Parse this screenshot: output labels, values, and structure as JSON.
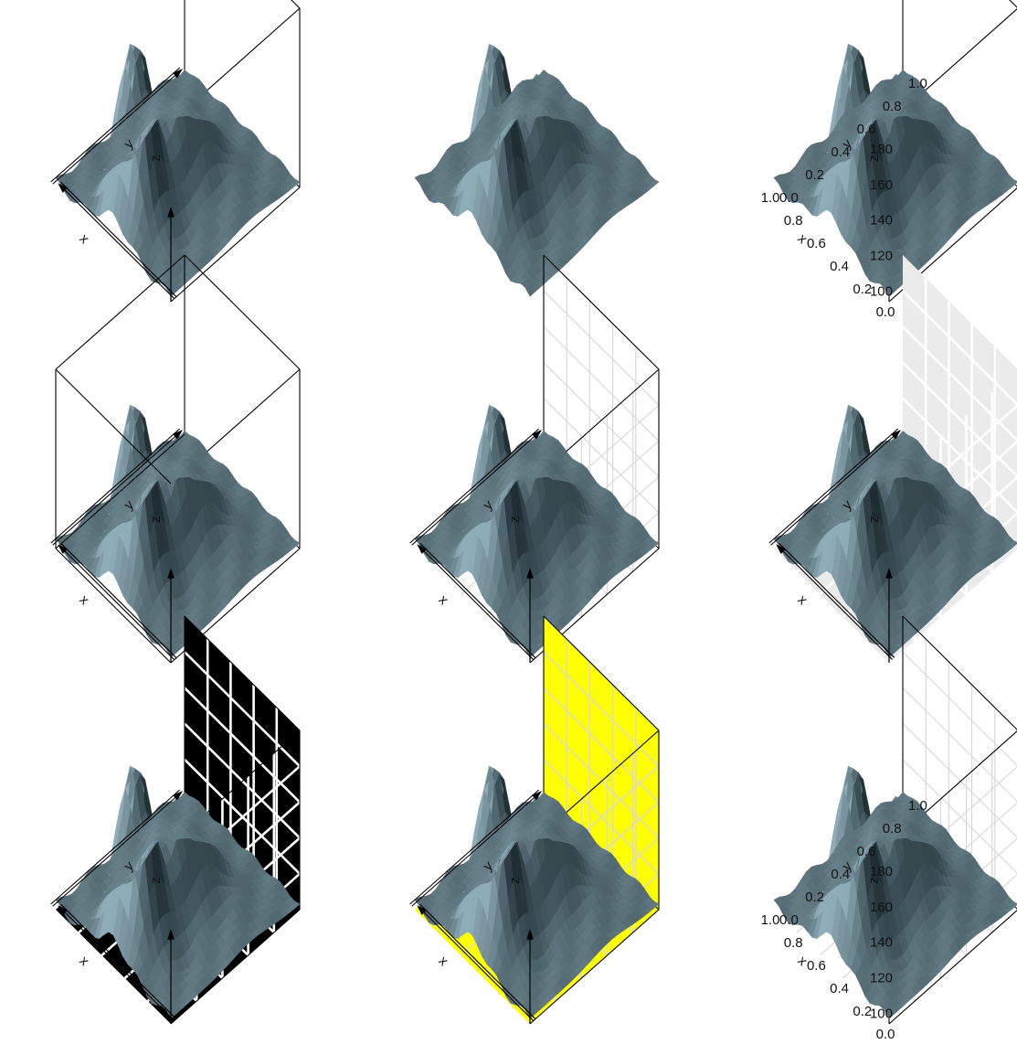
{
  "chart_data": {
    "type": "surface",
    "layout": {
      "rows": 3,
      "cols": 3
    },
    "xlabel": "x",
    "ylabel": "y",
    "zlabel": "z",
    "x_ticks": [
      "0.0",
      "0.2",
      "0.4",
      "0.6",
      "0.8",
      "1.0"
    ],
    "y_ticks": [
      "0.0",
      "0.2",
      "0.4",
      "0.6",
      "0.8",
      "1.0"
    ],
    "z_ticks": [
      "100",
      "120",
      "140",
      "160",
      "180"
    ],
    "xlim": [
      0,
      1
    ],
    "ylim": [
      0,
      1
    ],
    "zlim": [
      94,
      195
    ],
    "colors": {
      "surface_dark": "#1f2e33",
      "surface_light": "#8fadb8",
      "panel_grey": "#ebebeb",
      "panel_black": "#000000",
      "panel_yellow": "#ffff00",
      "grid_light": "#d9d9d9",
      "grid_white": "#ffffff",
      "frame": "#000000"
    },
    "panels": [
      {
        "box": "back",
        "panels": "none",
        "grid": false,
        "axis_labels": true,
        "ticks": false,
        "axis_arrows": true
      },
      {
        "box": "none",
        "panels": "none",
        "grid": false,
        "axis_labels": false,
        "ticks": false,
        "axis_arrows": false
      },
      {
        "box": "back",
        "panels": "none",
        "grid": false,
        "axis_labels": true,
        "ticks": true,
        "axis_arrows": false
      },
      {
        "box": "full",
        "panels": "none",
        "grid": false,
        "axis_labels": true,
        "ticks": false,
        "axis_arrows": true
      },
      {
        "box": "back",
        "panels": "none",
        "grid": true,
        "axis_labels": true,
        "ticks": false,
        "axis_arrows": true
      },
      {
        "box": "none",
        "panels": "grey",
        "grid": true,
        "axis_labels": true,
        "ticks": false,
        "axis_arrows": true
      },
      {
        "box": "back",
        "panels": "black",
        "grid": true,
        "axis_labels": true,
        "ticks": false,
        "axis_arrows": true
      },
      {
        "box": "back",
        "panels": "yellow",
        "grid": true,
        "axis_labels": true,
        "ticks": false,
        "axis_arrows": true
      },
      {
        "box": "back",
        "panels": "none",
        "grid": true,
        "axis_labels": true,
        "ticks": true,
        "axis_arrows": false
      }
    ]
  }
}
